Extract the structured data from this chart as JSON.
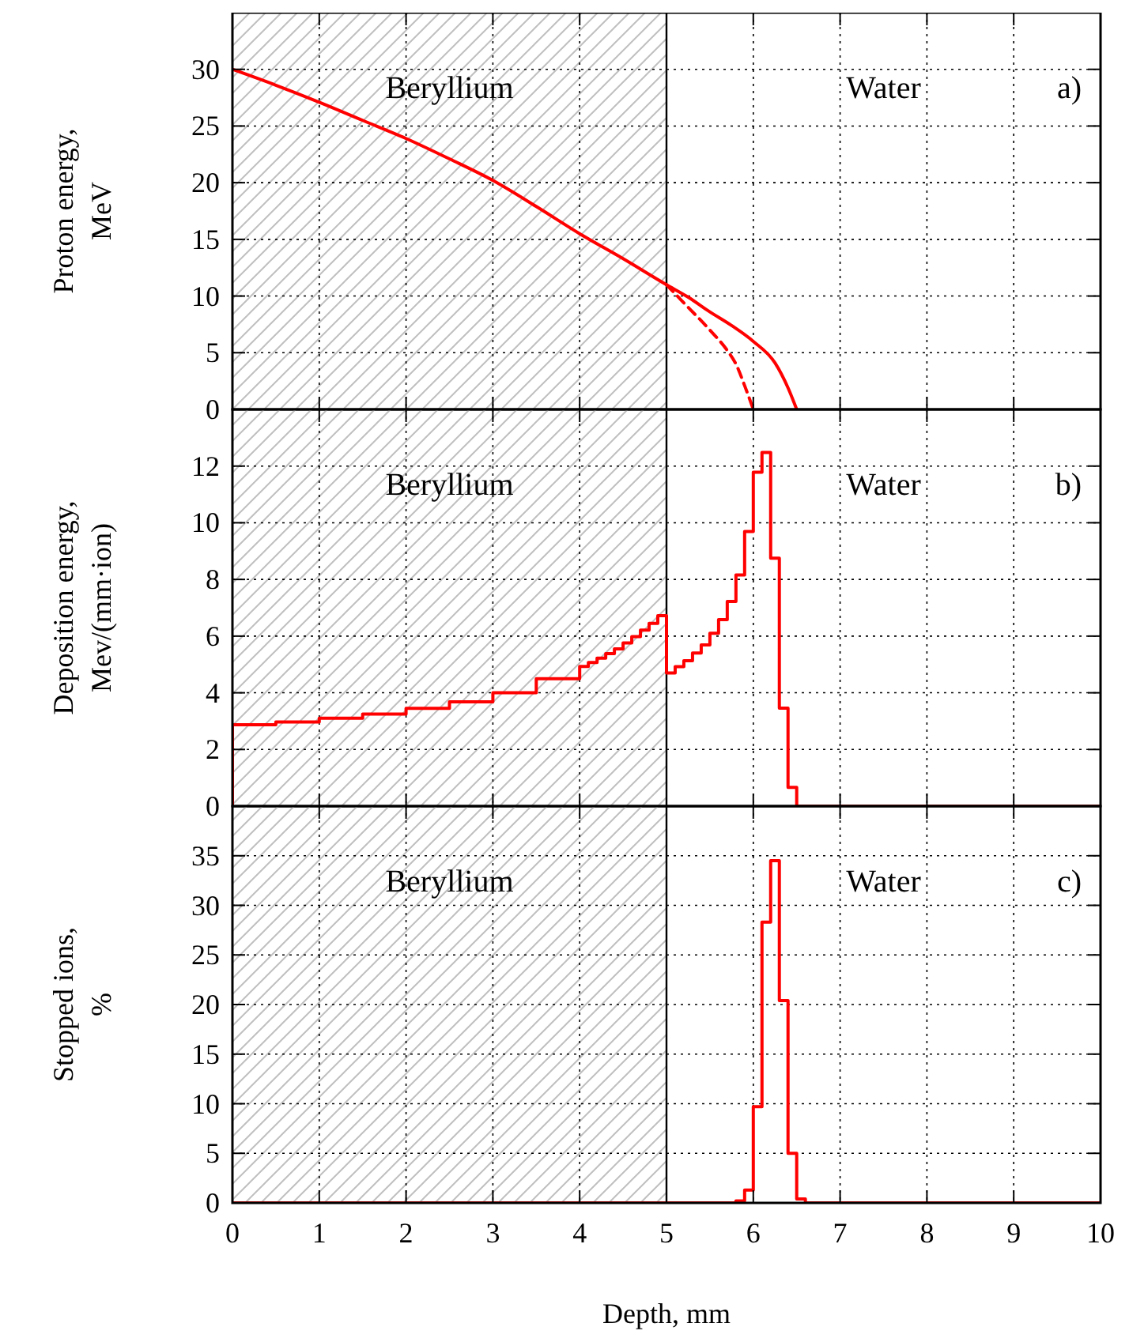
{
  "chart_data": [
    {
      "type": "line",
      "ylabel": "Proton energy,\nMeV",
      "xlim": [
        0,
        10
      ],
      "xticks": [
        0,
        1,
        2,
        3,
        4,
        5,
        6,
        7,
        8,
        9,
        10
      ],
      "ylim": [
        0,
        35
      ],
      "yticks": [
        0,
        5,
        10,
        15,
        20,
        25,
        30
      ],
      "grid": true,
      "tick_labels": "y",
      "marker": "none",
      "series": [
        {
          "color": "#ff0000",
          "line_style": "solid",
          "x": [
            0,
            0.5,
            1,
            1.5,
            2,
            2.5,
            3,
            3.5,
            4,
            4.5,
            5,
            5.25,
            5.5,
            5.75,
            6,
            6.25,
            6.4,
            6.5
          ],
          "values": [
            30,
            28.6,
            27.1,
            25.5,
            23.9,
            22.1,
            20.2,
            17.9,
            15.5,
            13.3,
            11,
            9.9,
            8.6,
            7.4,
            6,
            4.1,
            1.9,
            0
          ]
        },
        {
          "color": "#ff0000",
          "line_style": "dashed",
          "x": [
            5,
            5.25,
            5.5,
            5.7,
            5.8,
            5.9,
            6
          ],
          "values": [
            11,
            9,
            7,
            5.2,
            4,
            2.1,
            0
          ]
        }
      ],
      "bands": [
        {
          "axis": "x",
          "from": 0,
          "to": 5,
          "label": "Beryllium",
          "color": "#c0c0c0"
        }
      ],
      "ref_lines": [
        {
          "axis": "x",
          "value": 5,
          "color": "#000000"
        }
      ],
      "annotations": [
        "Water",
        "a)"
      ]
    },
    {
      "type": "histogram",
      "ylabel": "Deposition energy,\nMev/(mm·ion)",
      "xlim": [
        0,
        10
      ],
      "xticks": [
        0,
        1,
        2,
        3,
        4,
        5,
        6,
        7,
        8,
        9,
        10
      ],
      "ylim": [
        0,
        14
      ],
      "yticks": [
        0,
        2,
        4,
        6,
        8,
        10,
        12
      ],
      "grid": true,
      "tick_labels": "y",
      "color": "#ff0000",
      "bins": [
        0,
        0.5,
        1,
        1.5,
        2,
        2.5,
        3,
        3.5,
        4,
        4.1,
        4.2,
        4.3,
        4.4,
        4.5,
        4.6,
        4.7,
        4.8,
        4.9,
        5,
        5.1,
        5.2,
        5.3,
        5.4,
        5.5,
        5.6,
        5.7,
        5.8,
        5.9,
        6,
        6.1,
        6.2,
        6.3,
        6.4,
        6.5,
        10
      ],
      "values": [
        2.87,
        2.97,
        3.1,
        3.25,
        3.45,
        3.68,
        4,
        4.5,
        4.93,
        5.07,
        5.22,
        5.38,
        5.55,
        5.76,
        5.98,
        6.21,
        6.45,
        6.72,
        4.7,
        4.92,
        5.13,
        5.4,
        5.69,
        6.1,
        6.58,
        7.22,
        8.16,
        9.69,
        11.78,
        12.48,
        8.75,
        3.46,
        0.66,
        0
      ],
      "bands": [
        {
          "axis": "x",
          "from": 0,
          "to": 5,
          "label": "Beryllium",
          "color": "#c0c0c0"
        }
      ],
      "ref_lines": [
        {
          "axis": "x",
          "value": 5,
          "color": "#000000"
        }
      ],
      "annotations": [
        "Water",
        "b)"
      ]
    },
    {
      "type": "histogram",
      "ylabel": "Stopped ions,\n%",
      "xlabel": "Depth, mm",
      "xlim": [
        0,
        10
      ],
      "xticks": [
        0,
        1,
        2,
        3,
        4,
        5,
        6,
        7,
        8,
        9,
        10
      ],
      "ylim": [
        0,
        40
      ],
      "yticks": [
        0,
        5,
        10,
        15,
        20,
        25,
        30,
        35
      ],
      "grid": true,
      "color": "#ff0000",
      "bins": [
        0,
        5.8,
        5.9,
        6,
        6.1,
        6.2,
        6.3,
        6.4,
        6.5,
        6.6,
        10
      ],
      "values": [
        0,
        0.2,
        1.3,
        9.7,
        28.3,
        34.5,
        20.4,
        5,
        0.4,
        0
      ],
      "bands": [
        {
          "axis": "x",
          "from": 0,
          "to": 5,
          "label": "Beryllium",
          "color": "#c0c0c0"
        }
      ],
      "ref_lines": [
        {
          "axis": "x",
          "value": 5,
          "color": "#000000"
        }
      ],
      "annotations": [
        "Water",
        "c)"
      ]
    }
  ]
}
